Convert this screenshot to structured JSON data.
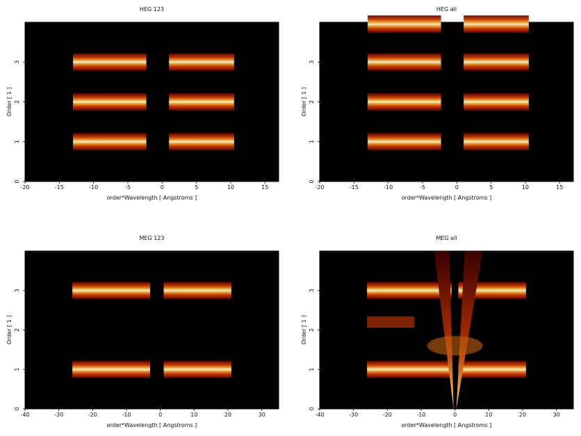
{
  "colors": {
    "background": "#000000",
    "low": "#5a0000",
    "mid": "#d04000",
    "high": "#ffc040",
    "peak": "#ffffff"
  },
  "chart_data": [
    {
      "type": "heatmap",
      "title": "HEG 123",
      "xlabel": "order*Wavelength [ Angstroms ]",
      "ylabel": "Order [ 1 ]",
      "xlim": [
        -20,
        17
      ],
      "ylim": [
        0,
        4
      ],
      "xticks": [
        -20,
        -15,
        -10,
        -5,
        0,
        5,
        10,
        15
      ],
      "yticks": [
        0,
        1,
        2,
        3
      ],
      "bands": [
        {
          "order": 1,
          "x0": -13,
          "x1": 10.5
        },
        {
          "order": 2,
          "x0": -13,
          "x1": 10.5
        },
        {
          "order": 3,
          "x0": -13,
          "x1": 10.5
        }
      ],
      "gap": [
        -2.3,
        1.0
      ]
    },
    {
      "type": "heatmap",
      "title": "HEG all",
      "xlabel": "order*Wavelength [ Angstroms ]",
      "ylabel": "Order [ 1 ]",
      "xlim": [
        -20,
        17
      ],
      "ylim": [
        0,
        4
      ],
      "xticks": [
        -20,
        -15,
        -10,
        -5,
        0,
        5,
        10,
        15
      ],
      "yticks": [
        0,
        1,
        2,
        3
      ],
      "bands": [
        {
          "order": 1,
          "x0": -13,
          "x1": 10.5
        },
        {
          "order": 2,
          "x0": -13,
          "x1": 10.5
        },
        {
          "order": 3,
          "x0": -13,
          "x1": 10.5
        },
        {
          "order": 3.95,
          "x0": -13,
          "x1": 10.5
        }
      ],
      "gap": [
        -2.3,
        1.0
      ]
    },
    {
      "type": "heatmap",
      "title": "MEG 123",
      "xlabel": "order*Wavelength [ Angstroms ]",
      "ylabel": "Order [ 1 ]",
      "xlim": [
        -40,
        35
      ],
      "ylim": [
        0,
        4
      ],
      "xticks": [
        -40,
        -30,
        -20,
        -10,
        0,
        10,
        20,
        30
      ],
      "yticks": [
        0,
        1,
        2,
        3
      ],
      "bands": [
        {
          "order": 1,
          "x0": -26,
          "x1": 21
        },
        {
          "order": 3,
          "x0": -26,
          "x1": 21
        }
      ],
      "gap": [
        -3,
        1.0
      ]
    },
    {
      "type": "heatmap",
      "title": "MEG all",
      "xlabel": "order*Wavelength [ Angstroms ]",
      "ylabel": "Order [ 1 ]",
      "xlim": [
        -40,
        35
      ],
      "ylim": [
        0,
        4
      ],
      "xticks": [
        -40,
        -30,
        -20,
        -10,
        0,
        10,
        20,
        30
      ],
      "yticks": [
        0,
        1,
        2,
        3
      ],
      "bands": [
        {
          "order": 1,
          "x0": -26,
          "x1": 21
        },
        {
          "order": 3,
          "x0": -26,
          "x1": 21
        }
      ],
      "gap": [
        -1,
        1
      ]
    }
  ]
}
